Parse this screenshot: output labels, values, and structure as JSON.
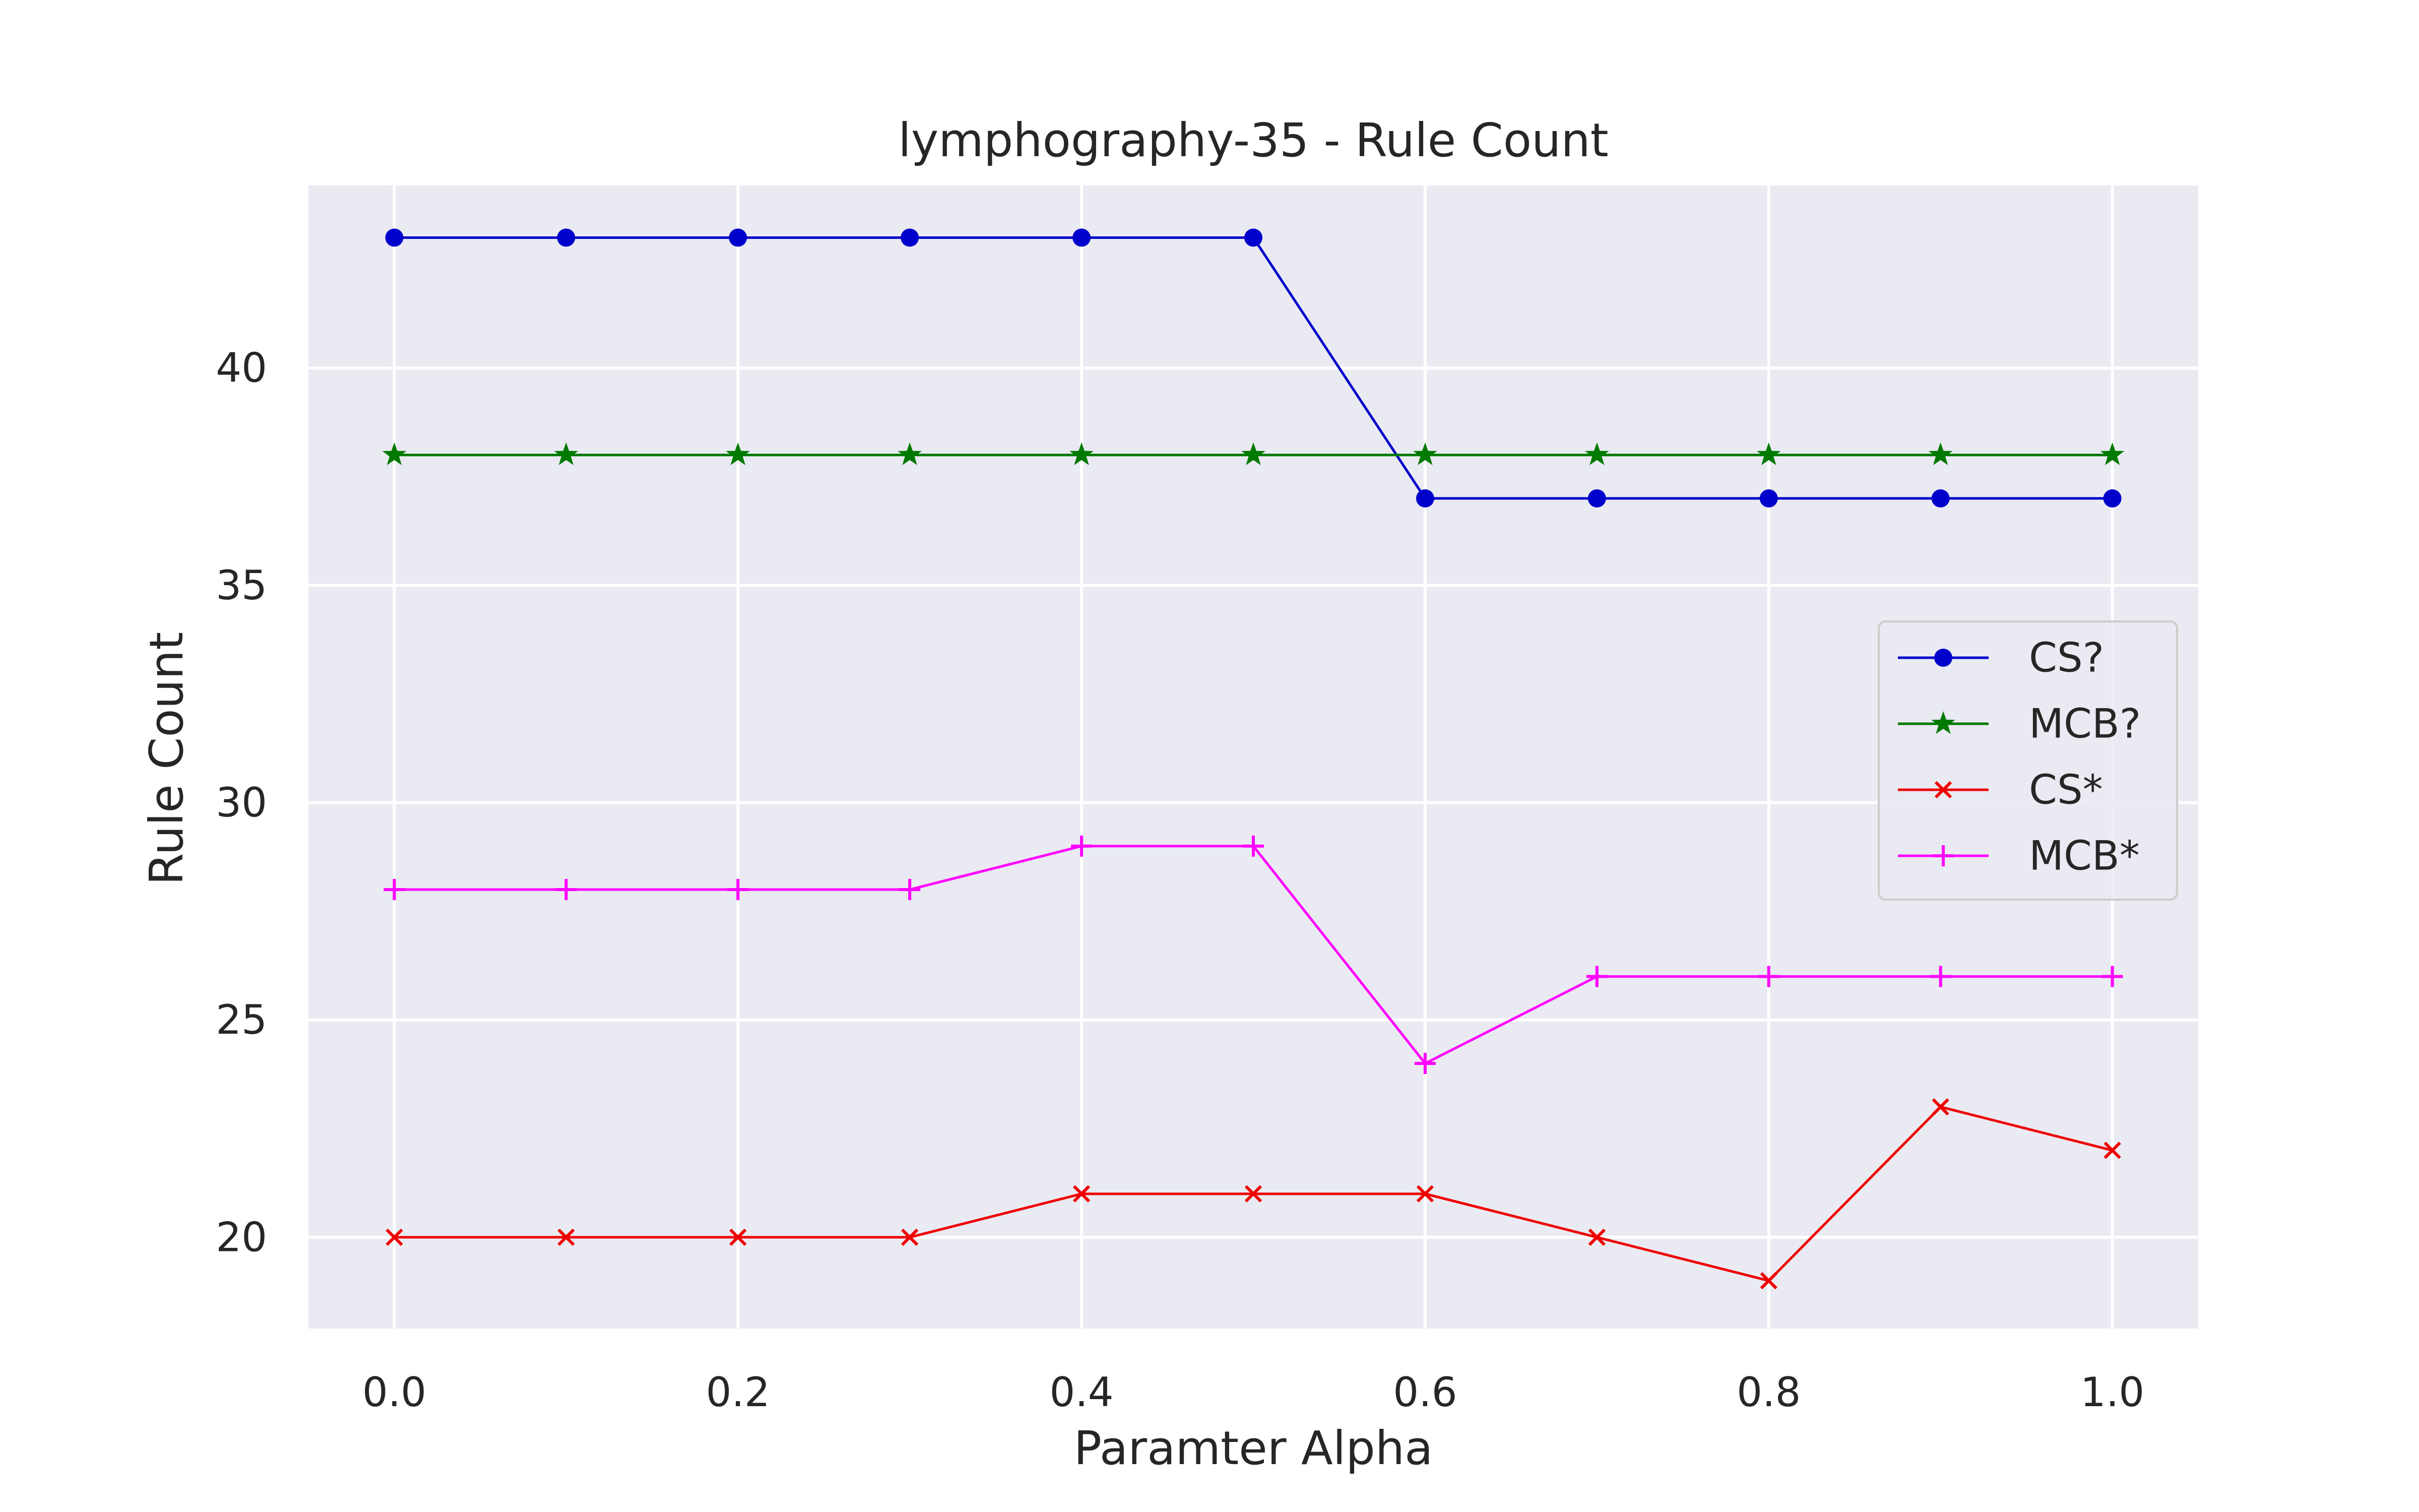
{
  "chart_data": {
    "type": "line",
    "title": "lymphography-35 - Rule Count",
    "xlabel": "Paramter Alpha",
    "ylabel": "Rule Count",
    "x": [
      0.0,
      0.1,
      0.2,
      0.3,
      0.4,
      0.5,
      0.6,
      0.7,
      0.8,
      0.9,
      1.0
    ],
    "xlim": [
      -0.05,
      1.05
    ],
    "ylim": [
      17.9,
      44.2
    ],
    "xticks": [
      0.0,
      0.2,
      0.4,
      0.6,
      0.8,
      1.0
    ],
    "xtick_labels": [
      "0.0",
      "0.2",
      "0.4",
      "0.6",
      "0.8",
      "1.0"
    ],
    "yticks": [
      20,
      25,
      30,
      35,
      40
    ],
    "ytick_labels": [
      "20",
      "25",
      "30",
      "35",
      "40"
    ],
    "grid": true,
    "background_color": "#eaeaf2",
    "legend_position": "center-right",
    "series": [
      {
        "name": "CS?",
        "color": "#0000cc",
        "marker": "circle",
        "values": [
          43,
          43,
          43,
          43,
          43,
          43,
          37,
          37,
          37,
          37,
          37
        ]
      },
      {
        "name": "MCB?",
        "color": "#007a00",
        "marker": "star",
        "values": [
          38,
          38,
          38,
          38,
          38,
          38,
          38,
          38,
          38,
          38,
          38
        ]
      },
      {
        "name": "CS*",
        "color": "#ee0000",
        "marker": "x",
        "values": [
          20,
          20,
          20,
          20,
          21,
          21,
          21,
          20,
          19,
          23,
          22
        ]
      },
      {
        "name": "MCB*",
        "color": "#ff00ff",
        "marker": "plus",
        "values": [
          28,
          28,
          28,
          28,
          29,
          29,
          24,
          26,
          26,
          26,
          26
        ]
      }
    ]
  }
}
